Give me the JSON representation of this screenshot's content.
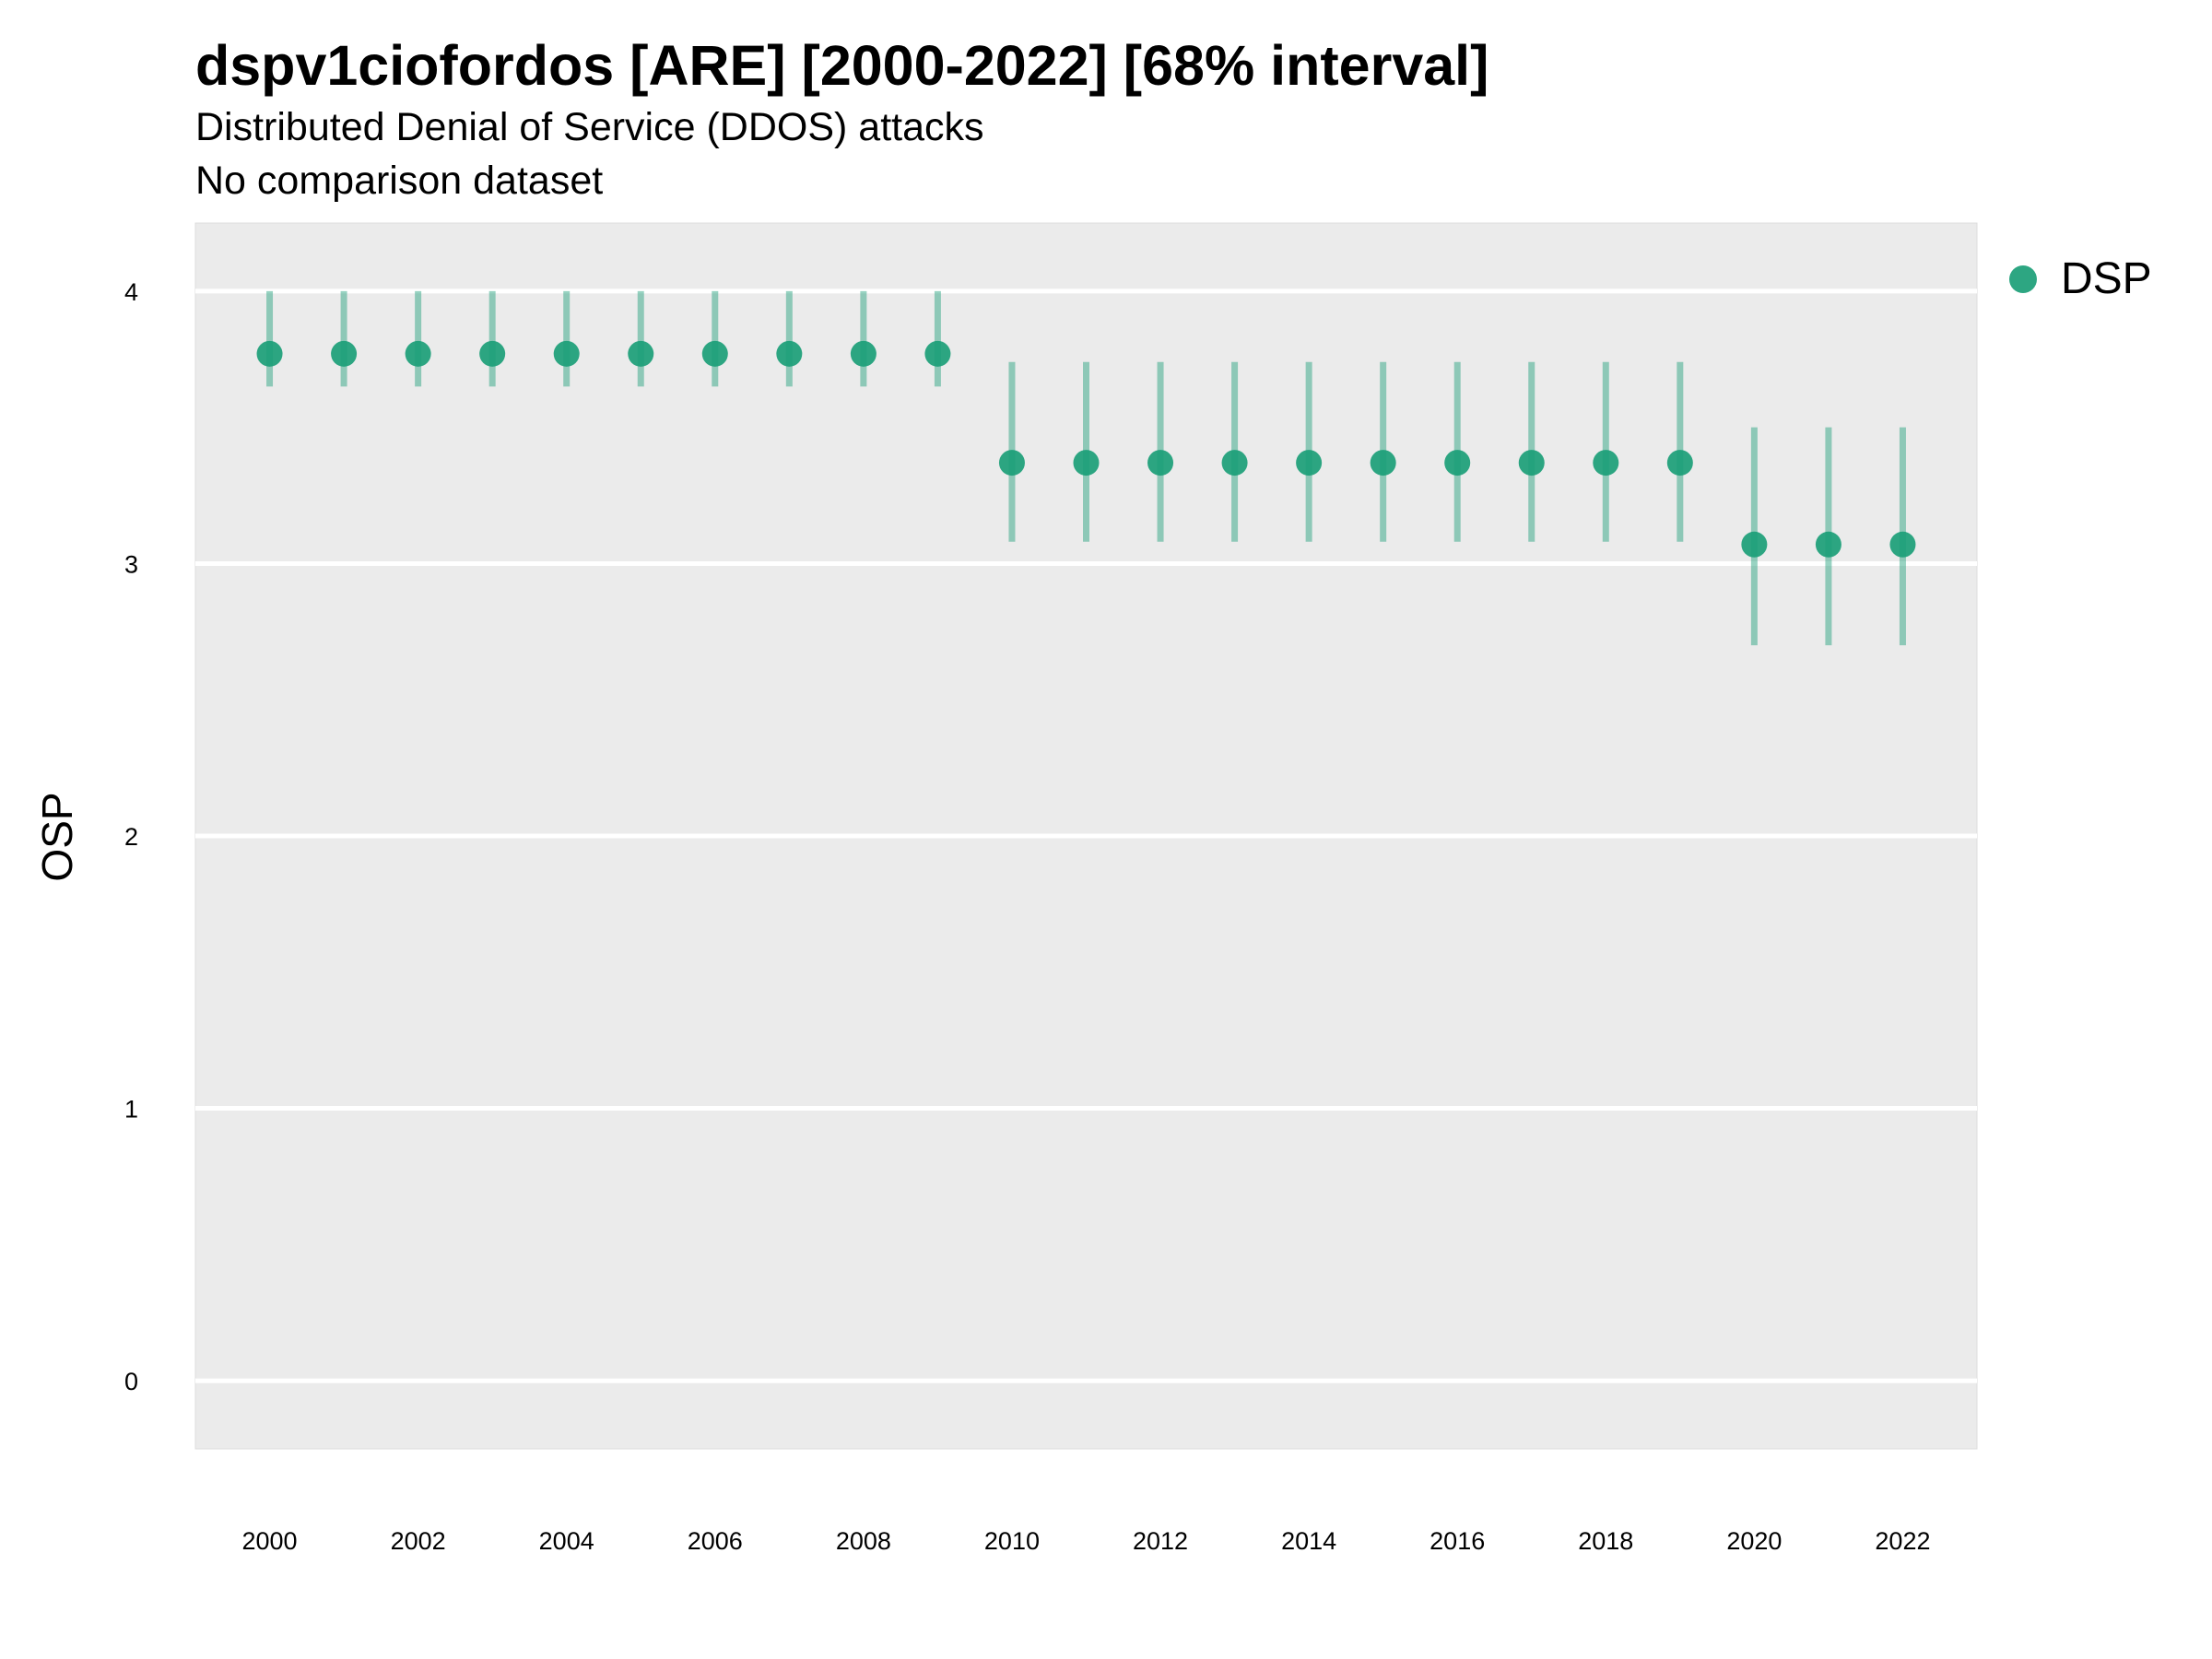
{
  "chart_data": {
    "type": "scatter",
    "title": "dspv1ciofordos [ARE] [2000-2022] [68% interval]",
    "subtitle": "Distributed Denial of Service (DDOS) attacks",
    "caption": "No comparison dataset",
    "xlabel": "",
    "ylabel": "OSP",
    "xlim": [
      1999,
      2023
    ],
    "ylim": [
      -0.25,
      4.25
    ],
    "x_ticks": [
      2000,
      2002,
      2004,
      2006,
      2008,
      2010,
      2012,
      2014,
      2016,
      2018,
      2020,
      2022
    ],
    "y_ticks": [
      0,
      1,
      2,
      3,
      4
    ],
    "grid": true,
    "legend_position": "right",
    "colors": {
      "point": "#1b9e77",
      "panel": "#ebebeb",
      "grid": "#ffffff"
    },
    "series": [
      {
        "name": "DSP",
        "x": [
          2000,
          2001,
          2002,
          2003,
          2004,
          2005,
          2006,
          2007,
          2008,
          2009,
          2010,
          2011,
          2012,
          2013,
          2014,
          2015,
          2016,
          2017,
          2018,
          2019,
          2020,
          2021,
          2022
        ],
        "y": [
          3.77,
          3.77,
          3.77,
          3.77,
          3.77,
          3.77,
          3.77,
          3.77,
          3.77,
          3.77,
          3.37,
          3.37,
          3.37,
          3.37,
          3.37,
          3.37,
          3.37,
          3.37,
          3.37,
          3.37,
          3.07,
          3.07,
          3.07
        ],
        "lower": [
          3.65,
          3.65,
          3.65,
          3.65,
          3.65,
          3.65,
          3.65,
          3.65,
          3.65,
          3.65,
          3.08,
          3.08,
          3.08,
          3.08,
          3.08,
          3.08,
          3.08,
          3.08,
          3.08,
          3.08,
          2.7,
          2.7,
          2.7
        ],
        "upper": [
          4.0,
          4.0,
          4.0,
          4.0,
          4.0,
          4.0,
          4.0,
          4.0,
          4.0,
          4.0,
          3.74,
          3.74,
          3.74,
          3.74,
          3.74,
          3.74,
          3.74,
          3.74,
          3.74,
          3.74,
          3.5,
          3.5,
          3.5
        ]
      }
    ]
  }
}
